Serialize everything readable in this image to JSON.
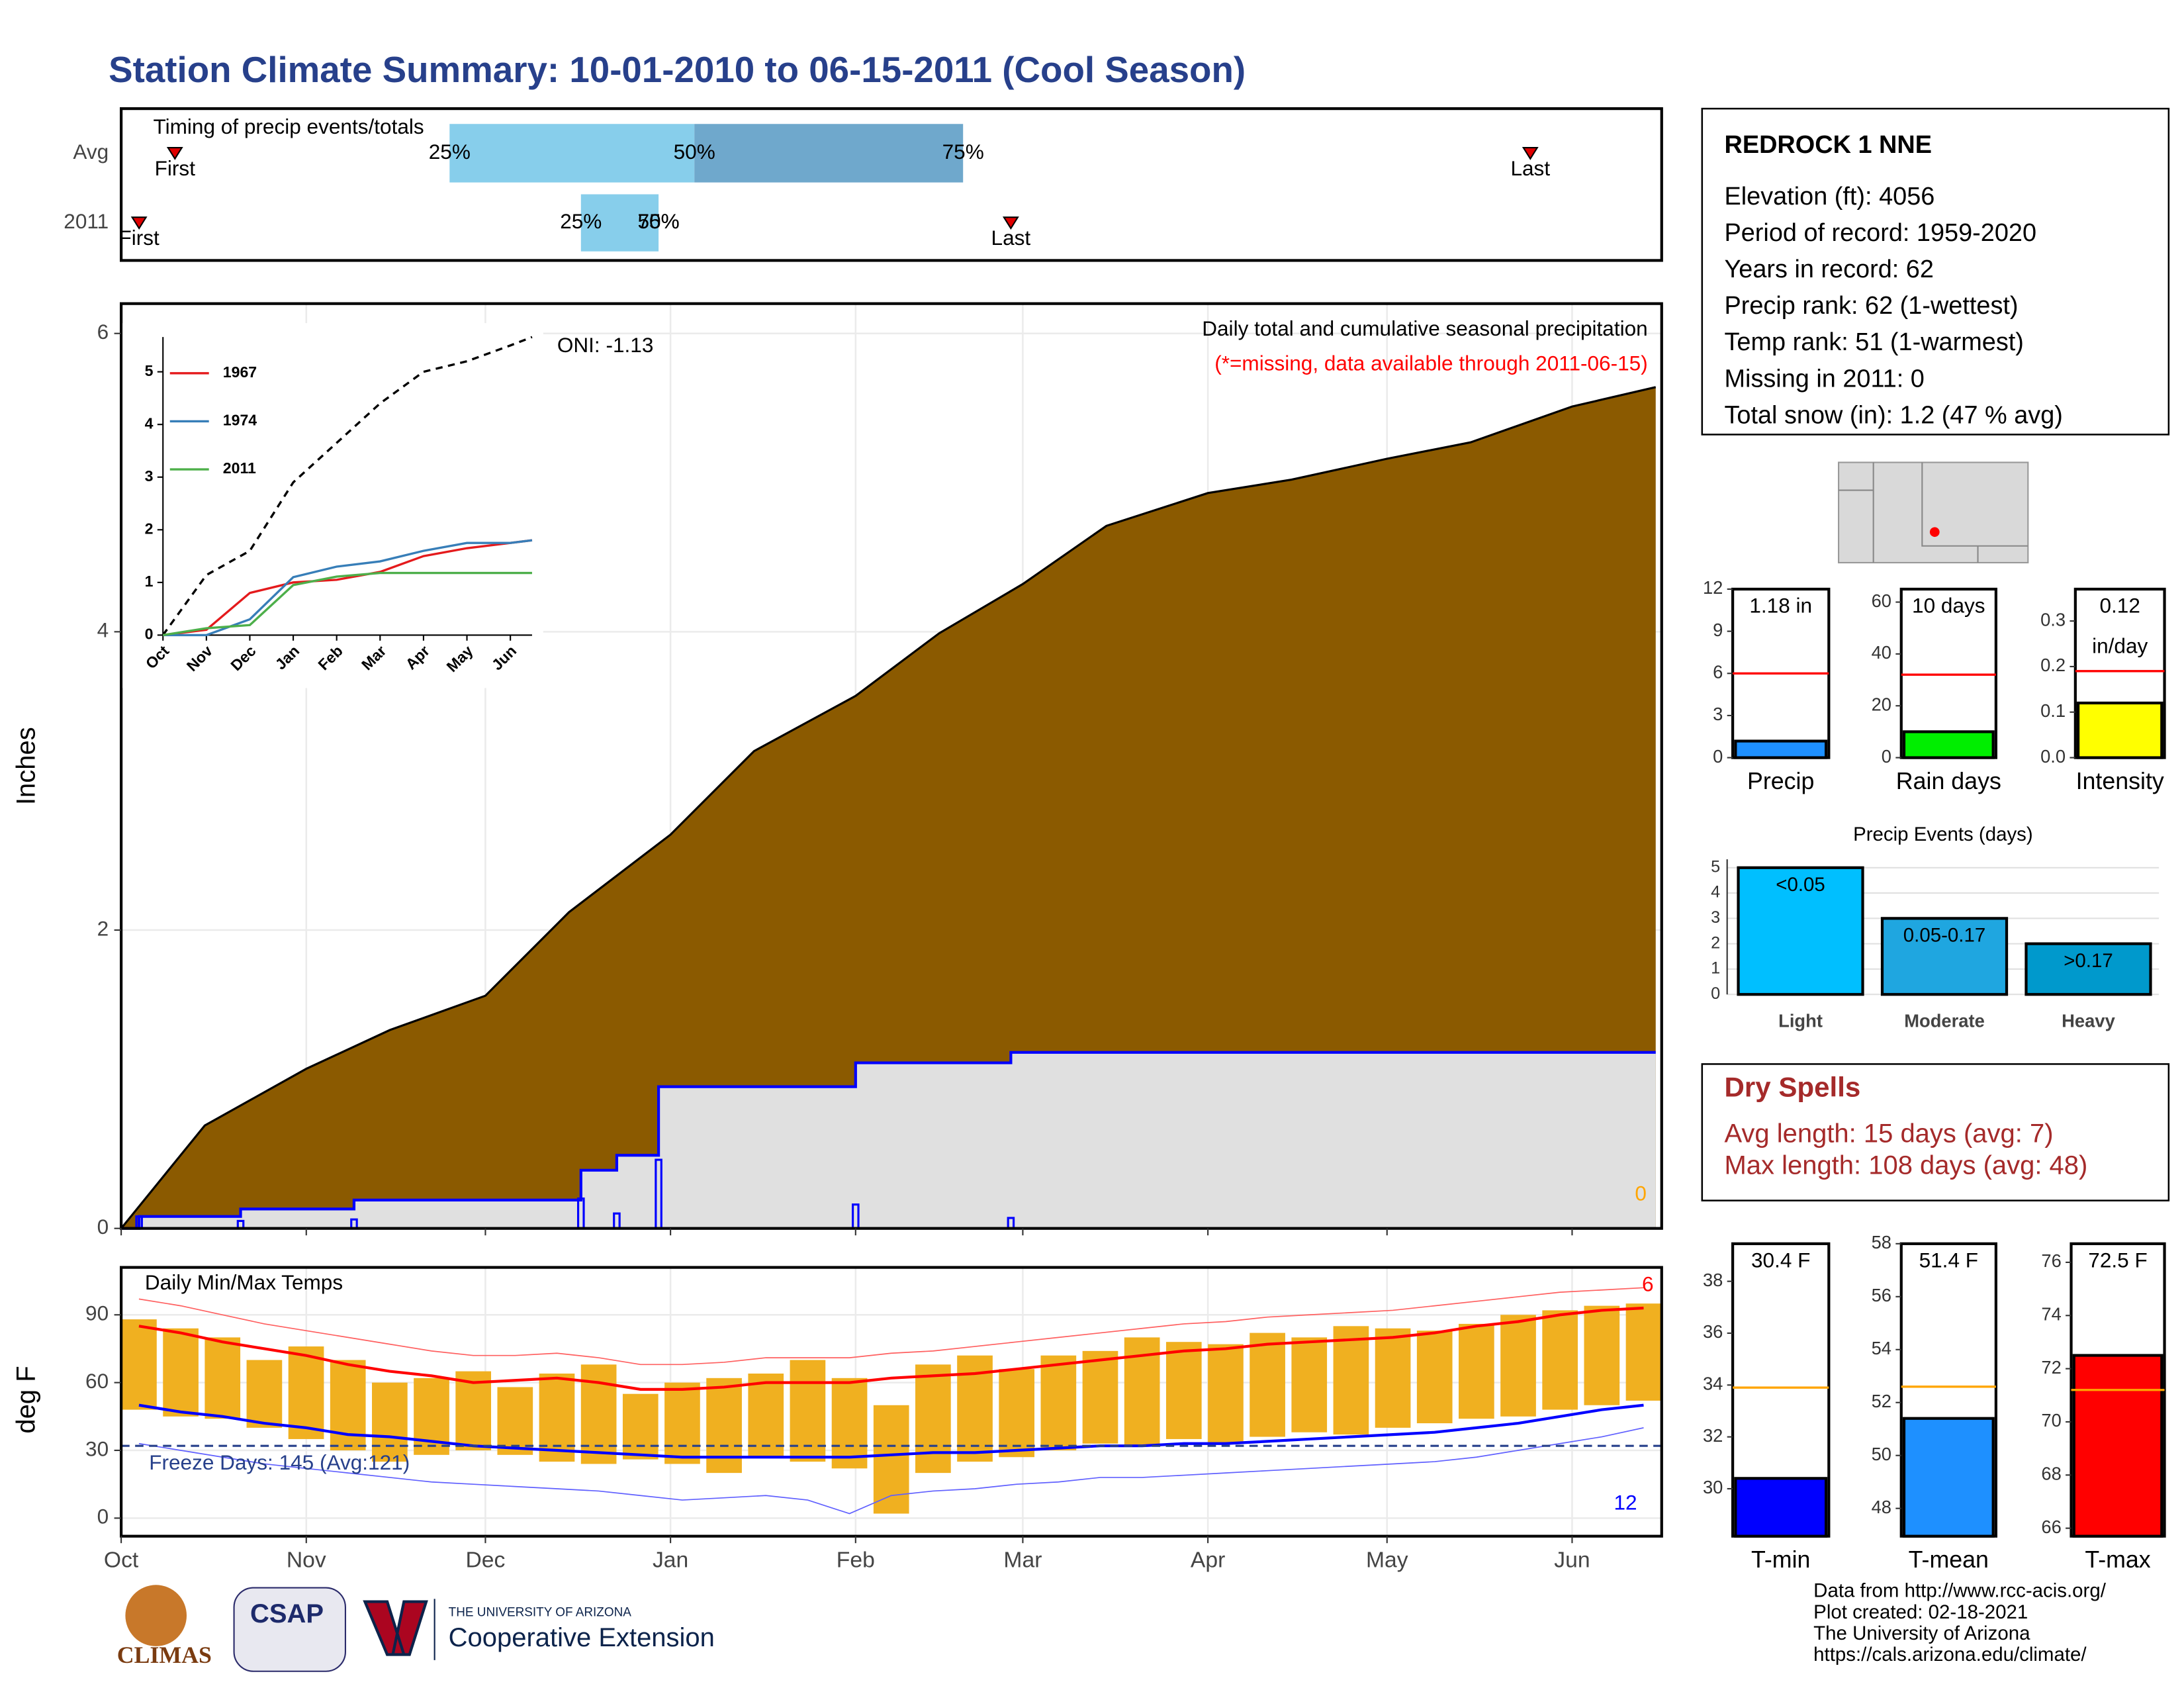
{
  "title": "Station Climate Summary: 10-01-2010 to 06-15-2011 (Cool Season)",
  "station_info": {
    "name": "REDROCK 1 NNE",
    "lines": [
      "Elevation (ft): 4056",
      "Period of record: 1959-2020",
      "Years in record: 62",
      "Precip rank: 62 (1-wettest)",
      "Temp rank: 51 (1-warmest)",
      "Missing in 2011: 0",
      "Total snow (in): 1.2 (47 % avg)"
    ]
  },
  "dry_spells": {
    "title": "Dry Spells",
    "lines": [
      "Avg length: 15 days (avg: 7)",
      "Max length: 108 days (avg: 48)"
    ]
  },
  "footer": {
    "credits": [
      "Data from http://www.rcc-acis.org/",
      "Plot created: 02-18-2021",
      "The University of Arizona",
      "https://cals.arizona.edu/climate/"
    ],
    "logos": [
      "CLIMAS",
      "CSAP",
      "THE UNIVERSITY OF ARIZONA",
      "Cooperative Extension"
    ]
  },
  "chart_data": [
    {
      "type": "timeline",
      "title": "Timing of precip events/totals",
      "xlim": [
        0,
        258
      ],
      "first_label": "First",
      "last_label": "Last",
      "quantile_labels": [
        "25%",
        "50%",
        "75%"
      ],
      "rows": [
        {
          "label": "Avg",
          "first": 9,
          "q25": 55,
          "q50": 96,
          "q75": 141,
          "last": 236,
          "colors": [
            "#87ceeb",
            "#6fa8cc"
          ]
        },
        {
          "label": "2011",
          "first": 3,
          "q25": 77,
          "q50": 90,
          "q75": 90,
          "last": 149,
          "colors": [
            "#87ceeb",
            "#87ceeb"
          ]
        }
      ]
    },
    {
      "type": "step_area",
      "ylabel": "Inches",
      "annotation": "Daily total and cumulative seasonal precipitation",
      "note": "(*=missing, data available through 2011-06-15)",
      "oni": "ONI: -1.13",
      "snow_label": 0,
      "xlim": [
        0,
        258
      ],
      "ylim": [
        0,
        6.2
      ],
      "yticks": [
        0,
        2,
        4,
        6
      ],
      "grid": true,
      "avg": {
        "color": "#8b5a00",
        "x": [
          0,
          14,
          31,
          45,
          61,
          75,
          92,
          106,
          123,
          137,
          151,
          165,
          182,
          196,
          212,
          226,
          243,
          257
        ],
        "values": [
          0,
          0.69,
          1.07,
          1.33,
          1.56,
          2.12,
          2.64,
          3.2,
          3.57,
          3.99,
          4.32,
          4.71,
          4.93,
          5.02,
          5.16,
          5.27,
          5.51,
          5.64
        ]
      },
      "current": {
        "color": "#0000ff",
        "fill": "#e0e0e0",
        "x": [
          0,
          3,
          20,
          39,
          77,
          83,
          90,
          123,
          149,
          257
        ],
        "values": [
          0,
          0.08,
          0.13,
          0.19,
          0.39,
          0.49,
          0.95,
          1.11,
          1.18,
          1.18
        ]
      },
      "daily": {
        "color": "#0000ff",
        "x": [
          3,
          20,
          39,
          77,
          83,
          90,
          123,
          149
        ],
        "values": [
          0.08,
          0.05,
          0.06,
          0.2,
          0.1,
          0.46,
          0.16,
          0.07
        ]
      }
    },
    {
      "type": "temperature",
      "title": "Daily Min/Max Temps",
      "ylabel": "deg F",
      "xlim": [
        0,
        258
      ],
      "ylim": [
        -8,
        111
      ],
      "yticks": [
        0,
        30,
        60,
        90
      ],
      "grid": true,
      "xticks": [
        {
          "value": 0,
          "label": "Oct"
        },
        {
          "value": 31,
          "label": "Nov"
        },
        {
          "value": 61,
          "label": "Dec"
        },
        {
          "value": 92,
          "label": "Jan"
        },
        {
          "value": 123,
          "label": "Feb"
        },
        {
          "value": 151,
          "label": "Mar"
        },
        {
          "value": 182,
          "label": "Apr"
        },
        {
          "value": 212,
          "label": "May"
        },
        {
          "value": 243,
          "label": "Jun"
        }
      ],
      "freeze_line": 32,
      "freeze_label": "Freeze Days: 145 (Avg:121)",
      "record_high_count": 6,
      "record_low_count": 12,
      "colors": {
        "bars": "#f0b020",
        "avg_max": "#ff0000",
        "avg_min": "#0000ff",
        "record_max": "#ff6060",
        "record_min": "#6060ff",
        "freeze": "#27408b"
      },
      "x": [
        0,
        7,
        14,
        21,
        28,
        35,
        42,
        49,
        56,
        63,
        70,
        77,
        84,
        91,
        98,
        105,
        112,
        119,
        126,
        133,
        140,
        147,
        154,
        161,
        168,
        175,
        182,
        189,
        196,
        203,
        210,
        217,
        224,
        231,
        238,
        245,
        252
      ],
      "max_2011": [
        88,
        84,
        80,
        70,
        76,
        70,
        60,
        62,
        65,
        58,
        64,
        68,
        55,
        60,
        62,
        64,
        70,
        62,
        50,
        68,
        72,
        66,
        72,
        74,
        80,
        78,
        77,
        82,
        80,
        85,
        84,
        83,
        86,
        90,
        92,
        94,
        95
      ],
      "min_2011": [
        48,
        45,
        44,
        40,
        35,
        30,
        25,
        28,
        30,
        28,
        25,
        24,
        26,
        24,
        20,
        27,
        25,
        22,
        2,
        20,
        25,
        27,
        30,
        33,
        32,
        35,
        33,
        36,
        38,
        37,
        40,
        42,
        44,
        45,
        48,
        50,
        52
      ],
      "avg_max": [
        85,
        82,
        78,
        75,
        72,
        68,
        65,
        63,
        60,
        61,
        62,
        60,
        57,
        57,
        58,
        60,
        60,
        60,
        62,
        63,
        64,
        66,
        68,
        70,
        72,
        74,
        75,
        77,
        78,
        79,
        80,
        82,
        85,
        87,
        90,
        92,
        93
      ],
      "avg_min": [
        50,
        47,
        45,
        42,
        40,
        37,
        36,
        34,
        32,
        31,
        30,
        29,
        28,
        27,
        27,
        27,
        27,
        27,
        28,
        29,
        29,
        30,
        31,
        32,
        32,
        33,
        33,
        34,
        35,
        36,
        37,
        38,
        40,
        42,
        45,
        48,
        50
      ],
      "record_max": [
        97,
        94,
        90,
        86,
        83,
        80,
        77,
        74,
        72,
        72,
        73,
        71,
        68,
        68,
        69,
        71,
        71,
        71,
        73,
        74,
        76,
        78,
        80,
        82,
        84,
        86,
        87,
        89,
        90,
        91,
        92,
        94,
        96,
        98,
        100,
        101,
        102
      ],
      "record_min": [
        33,
        30,
        27,
        24,
        22,
        20,
        18,
        16,
        15,
        14,
        13,
        12,
        10,
        8,
        9,
        10,
        8,
        2,
        10,
        12,
        13,
        15,
        16,
        18,
        18,
        19,
        20,
        21,
        22,
        23,
        24,
        25,
        27,
        30,
        33,
        36,
        40
      ]
    },
    {
      "type": "line",
      "xlim": [
        0,
        8.5
      ],
      "ylim": [
        0,
        5.66
      ],
      "yticks": [
        0,
        1,
        2,
        3,
        4,
        5
      ],
      "xticks": [
        {
          "value": 0,
          "label": "Oct"
        },
        {
          "value": 1,
          "label": "Nov"
        },
        {
          "value": 2,
          "label": "Dec"
        },
        {
          "value": 3,
          "label": "Jan"
        },
        {
          "value": 4,
          "label": "Feb"
        },
        {
          "value": 5,
          "label": "Mar"
        },
        {
          "value": 6,
          "label": "Apr"
        },
        {
          "value": 7,
          "label": "May"
        },
        {
          "value": 8,
          "label": "Jun"
        }
      ],
      "x": [
        0,
        1,
        2,
        3,
        4,
        5,
        6,
        7,
        8,
        8.5
      ],
      "avg": {
        "color": "#000000",
        "values": [
          0,
          1.14,
          1.6,
          2.9,
          3.65,
          4.4,
          5.0,
          5.2,
          5.5,
          5.66
        ]
      },
      "series": [
        {
          "name": "1967",
          "color": "#e41a1c",
          "values": [
            0,
            0.1,
            0.8,
            1.0,
            1.05,
            1.2,
            1.5,
            1.65,
            1.75,
            1.8
          ]
        },
        {
          "name": "1974",
          "color": "#377eb8",
          "values": [
            0,
            0,
            0.3,
            1.1,
            1.3,
            1.4,
            1.6,
            1.75,
            1.75,
            1.8
          ]
        },
        {
          "name": "2011",
          "color": "#4daf4a",
          "values": [
            0,
            0.13,
            0.19,
            0.95,
            1.11,
            1.18,
            1.18,
            1.18,
            1.18,
            1.18
          ]
        }
      ]
    },
    {
      "type": "gauge",
      "label": "Precip",
      "ylim": [
        0,
        12
      ],
      "yticks": [
        0,
        3,
        6,
        9,
        12
      ],
      "values": [
        1.18
      ],
      "value_labels": [
        "1.18 in"
      ],
      "avg": 6,
      "color": "#1e90ff",
      "avg_color": "#ff0000"
    },
    {
      "type": "gauge",
      "label": "Rain days",
      "ylim": [
        0,
        65
      ],
      "yticks": [
        0,
        20,
        40,
        60
      ],
      "values": [
        10
      ],
      "value_labels": [
        "10 days"
      ],
      "avg": 32,
      "color": "#00ee00",
      "avg_color": "#ff0000"
    },
    {
      "type": "gauge",
      "label": "Intensity",
      "ylim": [
        0,
        0.37
      ],
      "yticks": [
        {
          "value": 0,
          "label": "0.0"
        },
        0.1,
        0.2,
        0.3
      ],
      "values": [
        0.12
      ],
      "value_labels": [
        "0.12"
      ],
      "unit_label": "in/day",
      "avg": 0.19,
      "color": "#ffff00",
      "avg_color": "#ff0000"
    },
    {
      "type": "bar",
      "title": "Precip Events (days)",
      "categories": [
        "Light",
        "Moderate",
        "Heavy"
      ],
      "values": [
        5,
        3,
        2
      ],
      "bar_labels": [
        "<0.05",
        "0.05-0.17",
        ">0.17"
      ],
      "colors": [
        "#00bfff",
        "#1fa6e0",
        "#0099cc"
      ],
      "ylim": [
        0,
        5.33
      ],
      "yticks": [
        0,
        1,
        2,
        3,
        4,
        5
      ],
      "grid": true
    },
    {
      "type": "gauge",
      "label": "T-min",
      "ylim": [
        28.17,
        39.45
      ],
      "yticks": [
        30,
        32,
        34,
        36,
        38
      ],
      "values": [
        30.4
      ],
      "value_labels": [
        "30.4 F"
      ],
      "avg": 33.9,
      "color": "#0000ff",
      "avg_color": "#ffa500"
    },
    {
      "type": "gauge",
      "label": "T-mean",
      "ylim": [
        46.95,
        58
      ],
      "yticks": [
        48,
        50,
        52,
        54,
        56,
        58
      ],
      "values": [
        51.4
      ],
      "value_labels": [
        "51.4 F"
      ],
      "avg": 52.6,
      "color": "#1e90ff",
      "avg_color": "#ffa500"
    },
    {
      "type": "gauge",
      "label": "T-max",
      "ylim": [
        65.7,
        76.7
      ],
      "yticks": [
        66,
        68,
        70,
        72,
        74,
        76
      ],
      "values": [
        72.5
      ],
      "value_labels": [
        "72.5 F"
      ],
      "avg": 71.2,
      "color": "#ff0000",
      "avg_color": "#ffa500"
    }
  ]
}
